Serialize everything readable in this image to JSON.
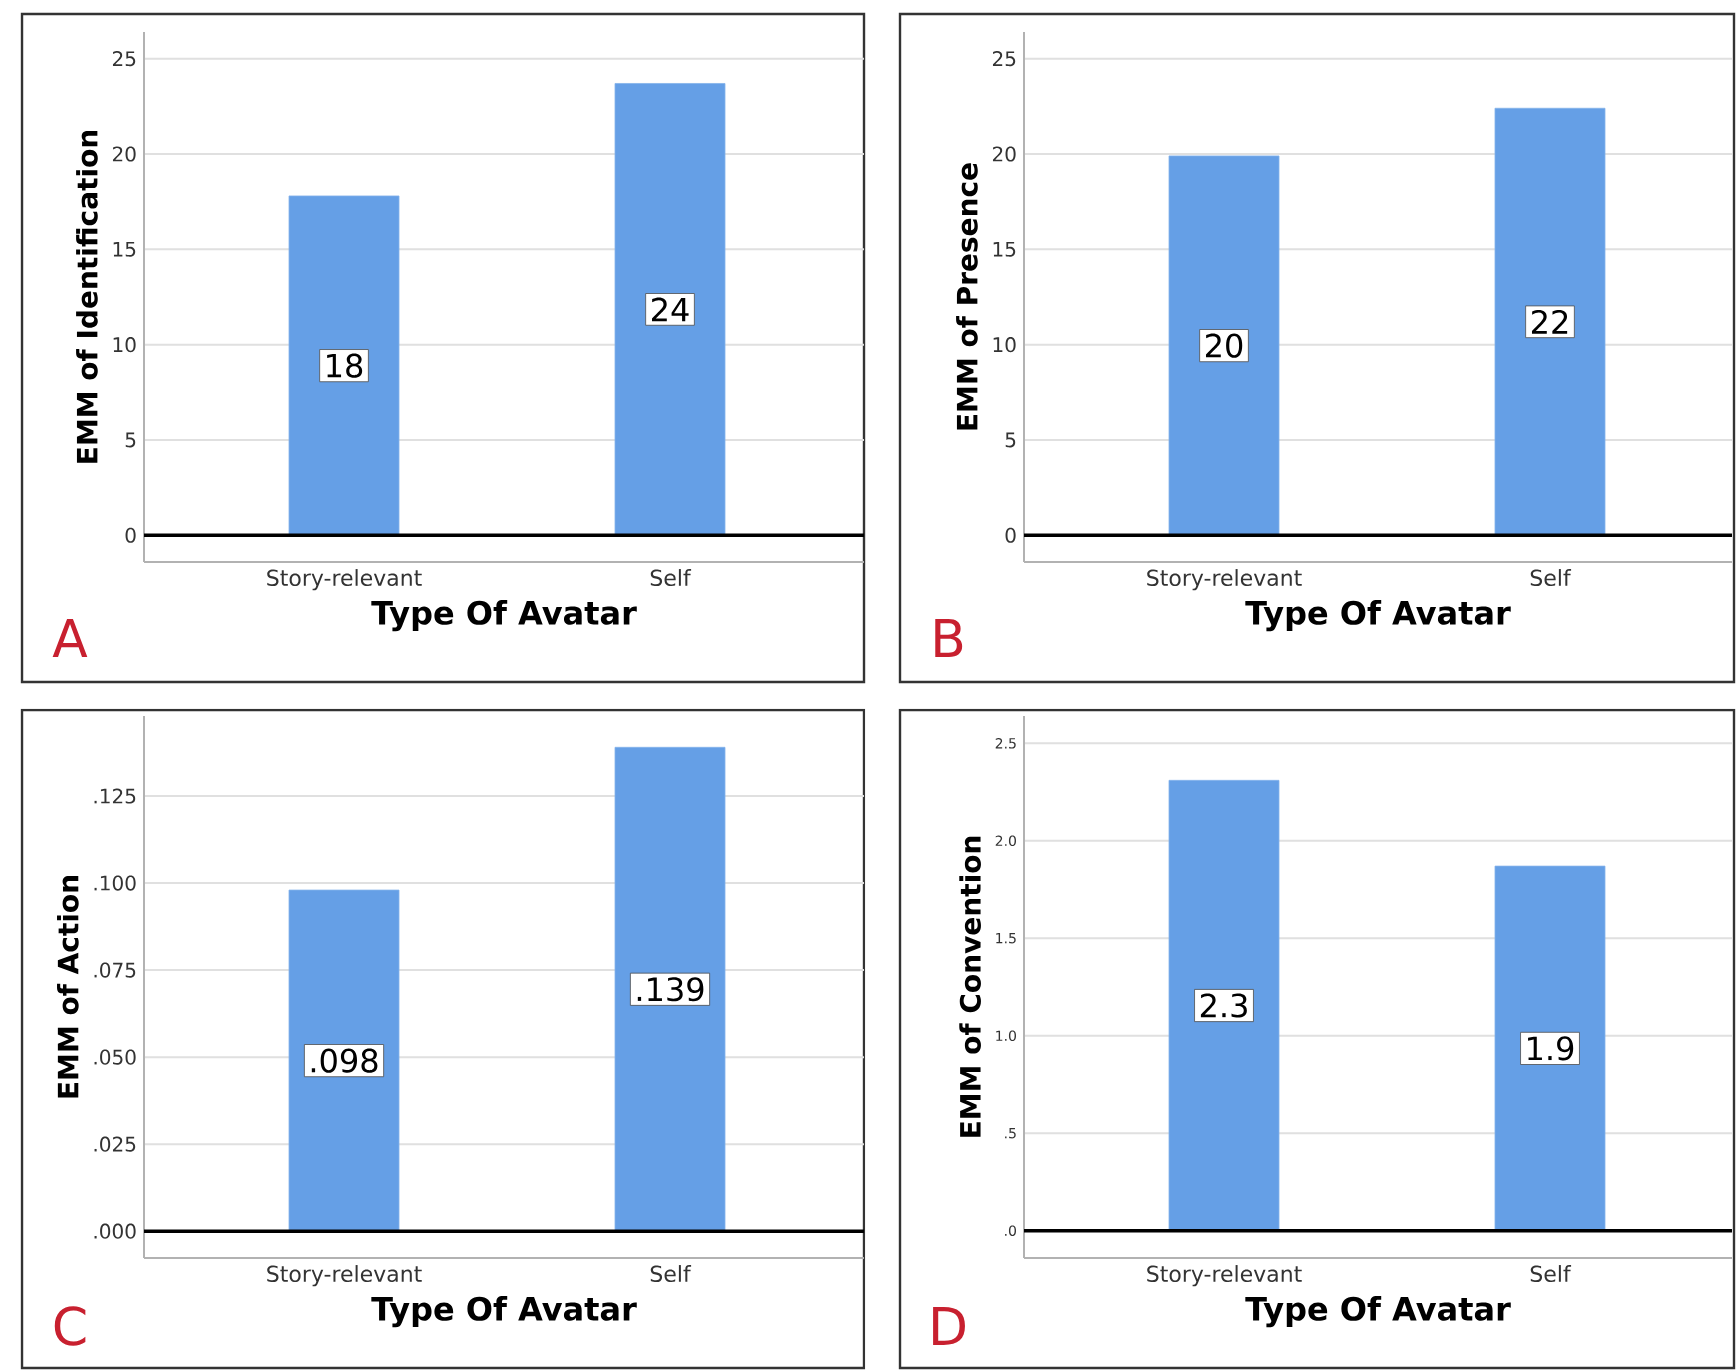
{
  "chart_data": [
    {
      "type": "bar",
      "categories": [
        "Story-relevant",
        "Self"
      ],
      "values": [
        17.8,
        23.7
      ],
      "value_labels": [
        "18",
        "24"
      ],
      "color": "#659fe6",
      "xlabel": "Type Of Avatar",
      "ylabel": "EMM of Identification",
      "ylim": [
        -1.4,
        26.4
      ],
      "yticks": [
        0,
        5,
        10,
        15,
        20,
        25
      ],
      "grid": "y",
      "ref_lines": [
        {
          "axis": "y",
          "value": 0,
          "color": "#000000"
        }
      ],
      "annotations": [
        "A"
      ]
    },
    {
      "type": "bar",
      "categories": [
        "Story-relevant",
        "Self"
      ],
      "values": [
        19.9,
        22.4
      ],
      "value_labels": [
        "20",
        "22"
      ],
      "color": "#659fe6",
      "xlabel": "Type Of Avatar",
      "ylabel": "EMM of Presence",
      "ylim": [
        -1.4,
        26.4
      ],
      "yticks": [
        0,
        5,
        10,
        15,
        20,
        25
      ],
      "grid": "y",
      "ref_lines": [
        {
          "axis": "y",
          "value": 0,
          "color": "#000000"
        }
      ],
      "annotations": [
        "B"
      ]
    },
    {
      "type": "bar",
      "categories": [
        "Story-relevant",
        "Self"
      ],
      "values": [
        0.098,
        0.139
      ],
      "value_labels": [
        ".098",
        ".139"
      ],
      "color": "#659fe6",
      "xlabel": "Type Of Avatar",
      "ylabel": "EMM of Action",
      "ylim": [
        -0.0077,
        0.148
      ],
      "yticks": [
        {
          "value": 0,
          "label": ".000"
        },
        {
          "value": 0.025,
          "label": ".025"
        },
        {
          "value": 0.05,
          "label": ".050"
        },
        {
          "value": 0.075,
          "label": ".075"
        },
        {
          "value": 0.1,
          "label": ".100"
        },
        {
          "value": 0.125,
          "label": ".125"
        }
      ],
      "grid": "y",
      "ref_lines": [
        {
          "axis": "y",
          "value": 0,
          "color": "#000000"
        }
      ],
      "annotations": [
        "C"
      ]
    },
    {
      "type": "bar",
      "categories": [
        "Story-relevant",
        "Self"
      ],
      "values": [
        2.31,
        1.87
      ],
      "value_labels": [
        "2.3",
        "1.9"
      ],
      "color": "#659fe6",
      "xlabel": "Type Of Avatar",
      "ylabel": "EMM of Convention",
      "ylim": [
        -0.14,
        2.64
      ],
      "yticks": [
        {
          "value": 0,
          "label": ".0"
        },
        {
          "value": 0.5,
          "label": ".5"
        },
        {
          "value": 1,
          "label": "1.0"
        },
        {
          "value": 1.5,
          "label": "1.5"
        },
        {
          "value": 2,
          "label": "2.0"
        },
        {
          "value": 2.5,
          "label": "2.5"
        }
      ],
      "grid": "y",
      "ref_lines": [
        {
          "axis": "y",
          "value": 0,
          "color": "#000000"
        }
      ],
      "annotations": [
        "D"
      ]
    }
  ]
}
